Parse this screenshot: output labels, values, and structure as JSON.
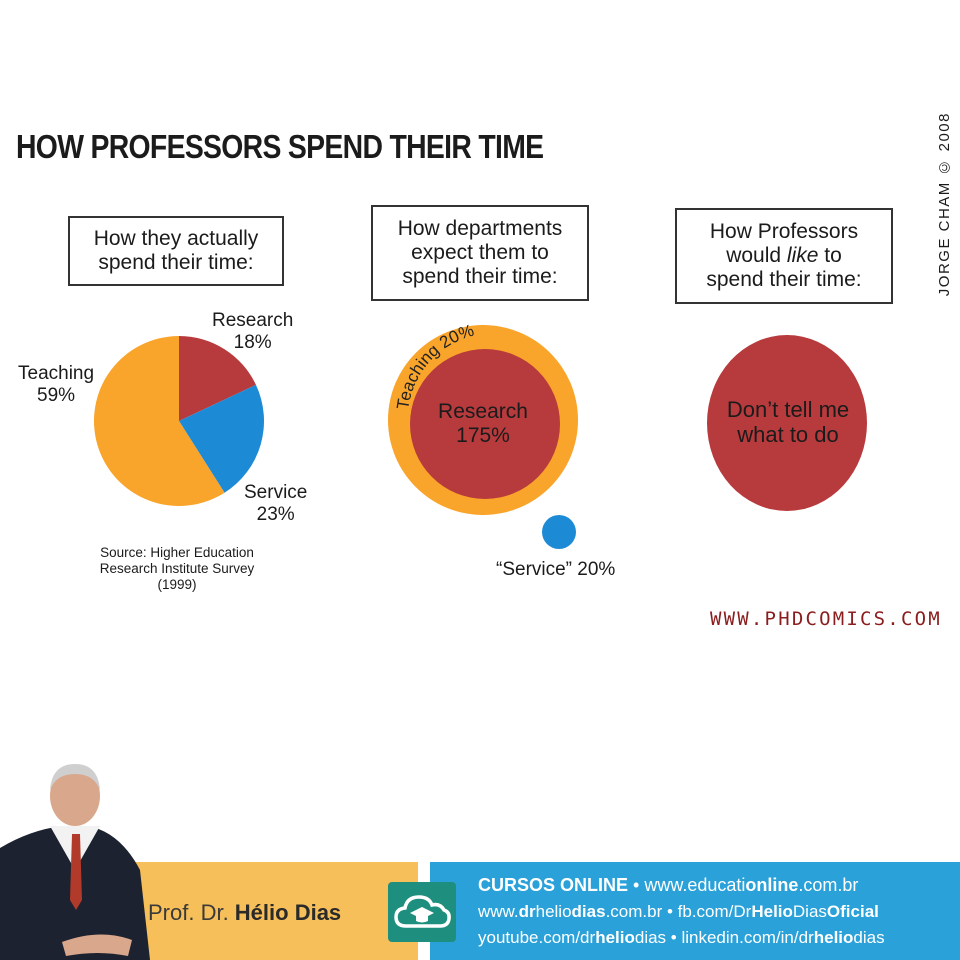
{
  "title": "HOW PROFESSORS SPEND THEIR TIME",
  "copyright": "JORGE CHAM © 2008",
  "website": "WWW.PHDCOMICS.COM",
  "colors": {
    "teaching": "#f9a42a",
    "research": "#b73a3d",
    "service": "#1d8ad6",
    "footer_left": "#f7bf5a",
    "footer_right": "#2aa1d8",
    "cloud_icon_bg": "#1e8f7e"
  },
  "panels": [
    {
      "caption": [
        "How they actually",
        "spend their time:"
      ]
    },
    {
      "caption": [
        "How departments",
        "expect them to",
        "spend their time:"
      ]
    },
    {
      "caption_before": "How Professors",
      "caption_mid_1": "would ",
      "caption_italic": "like",
      "caption_mid_2": " to",
      "caption_after": "spend their time:"
    }
  ],
  "chart_data": [
    {
      "type": "pie",
      "categories": [
        "Research",
        "Service",
        "Teaching"
      ],
      "values": [
        18,
        23,
        59
      ],
      "labels": [
        {
          "name": "Research",
          "value": "18%"
        },
        {
          "name": "Service",
          "value": "23%"
        },
        {
          "name": "Teaching",
          "value": "59%"
        }
      ],
      "source": [
        "Source: Higher Education",
        "Research Institute Survey",
        "(1999)"
      ]
    },
    {
      "type": "bubble",
      "categories": [
        "Teaching",
        "Research",
        "Service"
      ],
      "values": [
        20,
        175,
        20
      ],
      "labels": [
        {
          "name": "Teaching",
          "value": "20%",
          "text": "Teaching 20%"
        },
        {
          "name": "Research",
          "value": "175%"
        },
        {
          "name": "“Service”",
          "value": "20%",
          "text": "“Service” 20%"
        }
      ]
    },
    {
      "type": "pie",
      "categories": [
        "Don’t tell me what to do"
      ],
      "values": [
        100
      ],
      "label_lines": [
        "Don’t tell me",
        "what to do"
      ]
    }
  ],
  "footer": {
    "prof_prefix": "Prof. Dr. ",
    "prof_name": "Hélio Dias",
    "icon": "cloud-graduation-cap-icon",
    "line1": {
      "bold": "CURSOS ONLINE",
      "sep": " • ",
      "url_a": "www.educati",
      "url_b": "online",
      "url_c": ".com.br"
    },
    "line2": {
      "a": "www.",
      "b": "dr",
      "c": "helio",
      "d": "dias",
      "e": ".com.br • fb.com/Dr",
      "f": "Helio",
      "g": "Dias",
      "h": "Oficial"
    },
    "line3": {
      "a": "youtube.com/dr",
      "b": "helio",
      "c": "dias",
      "d": " • linkedin.com/in/dr",
      "e": "helio",
      "f": "dias"
    }
  }
}
